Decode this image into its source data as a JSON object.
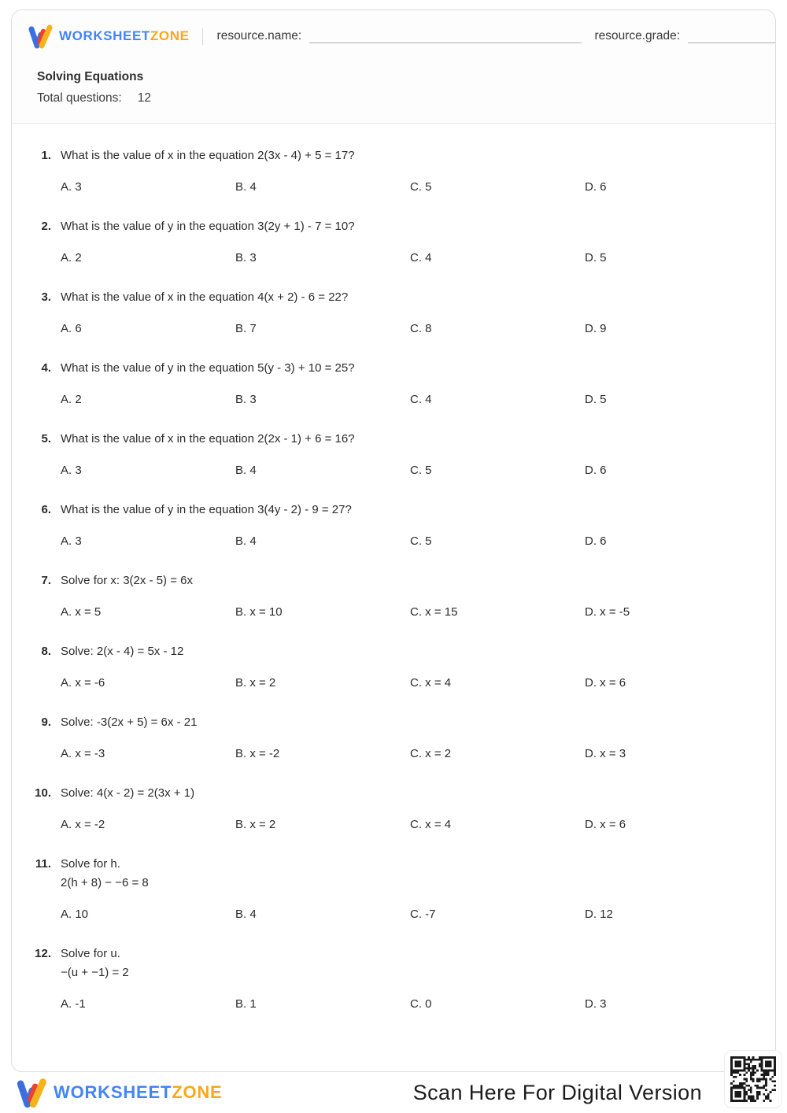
{
  "header": {
    "brand": {
      "word1": "WORKSHEET",
      "word2": "ZONE"
    },
    "resource_name_label": "resource.name:",
    "resource_grade_label": "resource.grade:"
  },
  "worksheet": {
    "title": "Solving Equations",
    "total_questions_label": "Total questions:",
    "total_questions_value": "12"
  },
  "questions": [
    {
      "number": "1.",
      "lines": [
        "What is the value of x in the equation 2(3x - 4) + 5 = 17?"
      ],
      "options": [
        {
          "label": "A.",
          "value": "3"
        },
        {
          "label": "B.",
          "value": "4"
        },
        {
          "label": "C.",
          "value": "5"
        },
        {
          "label": "D.",
          "value": "6"
        }
      ]
    },
    {
      "number": "2.",
      "lines": [
        "What is the value of y in the equation 3(2y + 1) - 7 = 10?"
      ],
      "options": [
        {
          "label": "A.",
          "value": "2"
        },
        {
          "label": "B.",
          "value": "3"
        },
        {
          "label": "C.",
          "value": "4"
        },
        {
          "label": "D.",
          "value": "5"
        }
      ]
    },
    {
      "number": "3.",
      "lines": [
        "What is the value of x in the equation 4(x + 2) - 6 = 22?"
      ],
      "options": [
        {
          "label": "A.",
          "value": "6"
        },
        {
          "label": "B.",
          "value": "7"
        },
        {
          "label": "C.",
          "value": "8"
        },
        {
          "label": "D.",
          "value": "9"
        }
      ]
    },
    {
      "number": "4.",
      "lines": [
        "What is the value of y in the equation 5(y - 3) + 10 = 25?"
      ],
      "options": [
        {
          "label": "A.",
          "value": "2"
        },
        {
          "label": "B.",
          "value": "3"
        },
        {
          "label": "C.",
          "value": "4"
        },
        {
          "label": "D.",
          "value": "5"
        }
      ]
    },
    {
      "number": "5.",
      "lines": [
        "What is the value of x in the equation 2(2x - 1) + 6 = 16?"
      ],
      "options": [
        {
          "label": "A.",
          "value": "3"
        },
        {
          "label": "B.",
          "value": "4"
        },
        {
          "label": "C.",
          "value": "5"
        },
        {
          "label": "D.",
          "value": "6"
        }
      ]
    },
    {
      "number": "6.",
      "lines": [
        "What is the value of y in the equation 3(4y - 2) - 9 = 27?"
      ],
      "options": [
        {
          "label": "A.",
          "value": "3"
        },
        {
          "label": "B.",
          "value": "4"
        },
        {
          "label": "C.",
          "value": "5"
        },
        {
          "label": "D.",
          "value": "6"
        }
      ]
    },
    {
      "number": "7.",
      "lines": [
        "Solve for x: 3(2x - 5) = 6x"
      ],
      "options": [
        {
          "label": "A.",
          "value": "x = 5"
        },
        {
          "label": "B.",
          "value": "x = 10"
        },
        {
          "label": "C.",
          "value": "x = 15"
        },
        {
          "label": "D.",
          "value": "x = -5"
        }
      ]
    },
    {
      "number": "8.",
      "lines": [
        "Solve: 2(x - 4) = 5x - 12"
      ],
      "options": [
        {
          "label": "A.",
          "value": "x = -6"
        },
        {
          "label": "B.",
          "value": "x = 2"
        },
        {
          "label": "C.",
          "value": "x = 4"
        },
        {
          "label": "D.",
          "value": "x = 6"
        }
      ]
    },
    {
      "number": "9.",
      "lines": [
        "Solve: -3(2x + 5) = 6x - 21"
      ],
      "options": [
        {
          "label": "A.",
          "value": "x = -3"
        },
        {
          "label": "B.",
          "value": "x = -2"
        },
        {
          "label": "C.",
          "value": "x = 2"
        },
        {
          "label": "D.",
          "value": "x = 3"
        }
      ]
    },
    {
      "number": "10.",
      "lines": [
        "Solve: 4(x - 2) = 2(3x + 1)"
      ],
      "options": [
        {
          "label": "A.",
          "value": "x = -2"
        },
        {
          "label": "B.",
          "value": "x = 2"
        },
        {
          "label": "C.",
          "value": "x = 4"
        },
        {
          "label": "D.",
          "value": "x = 6"
        }
      ]
    },
    {
      "number": "11.",
      "lines": [
        "Solve for h.",
        "2(h + 8) − −6 = 8"
      ],
      "options": [
        {
          "label": "A.",
          "value": "10"
        },
        {
          "label": "B.",
          "value": "4"
        },
        {
          "label": "C.",
          "value": "-7"
        },
        {
          "label": "D.",
          "value": "12"
        }
      ]
    },
    {
      "number": "12.",
      "lines": [
        "Solve for u.",
        "−(u + −1) = 2"
      ],
      "options": [
        {
          "label": "A.",
          "value": "-1"
        },
        {
          "label": "B.",
          "value": "1"
        },
        {
          "label": "C.",
          "value": "0"
        },
        {
          "label": "D.",
          "value": "3"
        }
      ]
    }
  ],
  "footer": {
    "brand": {
      "word1": "WORKSHEET",
      "word2": "ZONE"
    },
    "scan_text": "Scan Here For Digital Version",
    "qr_icon": "qr-code"
  },
  "colors": {
    "brand_blue": "#4285f4",
    "brand_orange": "#f7a81b",
    "brand_red": "#e94235"
  }
}
